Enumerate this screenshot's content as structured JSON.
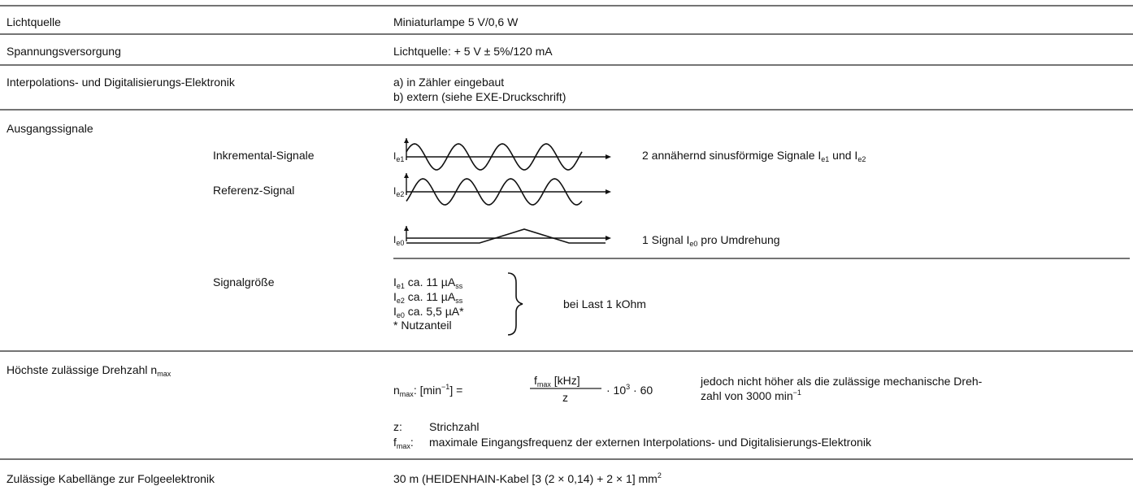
{
  "rows": [
    {
      "label": "Lichtquelle",
      "value": "Miniaturlampe 5 V/0,6 W"
    },
    {
      "label": "Spannungsversorgung",
      "value": "Lichtquelle: + 5 V ± 5%/120 mA"
    },
    {
      "label": "Interpolations- und Digitalisierungs-Elektronik",
      "lines": [
        "a)  in Zähler eingebaut",
        "b)  extern (siehe EXE-Druckschrift)"
      ]
    }
  ],
  "ausgang": {
    "label": "Ausgangssignale",
    "inkremental": "Inkremental-Signale",
    "referenz": "Referenz-Signal",
    "signals": [
      {
        "text": "I",
        "sub": "e1"
      },
      {
        "text": "I",
        "sub": "e2"
      },
      {
        "text": "I",
        "sub": "e0"
      }
    ],
    "desc1": [
      {
        "text": "2 annähernd sinusförmige Signale I",
        "sub": "e1"
      },
      {
        "text": " und I",
        "sub": "e2"
      }
    ],
    "desc0": [
      {
        "text": "1 Signal I",
        "sub": "e0"
      },
      {
        "text": " pro Umdrehung"
      }
    ]
  },
  "signalgroesse": {
    "label": "Signalgröße",
    "lines": [
      [
        {
          "text": "I",
          "sub": "e1"
        },
        {
          "text": " ca. 11 µA",
          "sub": "ss"
        }
      ],
      [
        {
          "text": "I",
          "sub": "e2"
        },
        {
          "text": " ca. 11 µA",
          "sub": "ss"
        }
      ],
      [
        {
          "text": "I",
          "sub": "e0"
        },
        {
          "text": " ca. 5,5 µA*"
        }
      ],
      [
        {
          "text": "* Nutzanteil"
        }
      ]
    ],
    "note": "bei Last 1 kOhm"
  },
  "drehzahl": {
    "label": [
      {
        "text": "Höchste zulässige Drehzahl n",
        "sub": "max"
      }
    ],
    "lhs": [
      {
        "text": "n",
        "sub": "max"
      },
      {
        "text": ":  [min",
        "sup": "−1"
      },
      {
        "text": "] ="
      }
    ],
    "numerator": [
      {
        "text": "f",
        "sub": "max"
      },
      {
        "text": " [kHz]"
      }
    ],
    "denominator": "z",
    "factor": [
      {
        "text": "· 10",
        "sup": "3"
      },
      {
        "text": " · 60"
      }
    ],
    "note": [
      {
        "text": "jedoch nicht höher als die zulässige mechanische Dreh-"
      },
      {
        "text": "zahl von 3000 min",
        "sup": "−1"
      }
    ],
    "z_key": "z:",
    "z_text": "Strichzahl",
    "f_key": [
      {
        "text": "f",
        "sub": "max"
      },
      {
        "text": ":"
      }
    ],
    "f_text": "maximale Eingangsfrequenz der externen Interpolations- und Digitalisierungs-Elektronik"
  },
  "kabel": {
    "label": "Zulässige Kabellänge zur Folgeelektronik",
    "value": [
      {
        "text": "30 m (HEIDENHAIN-Kabel [3 (2 × 0,14) + 2 × 1] mm",
        "sup": "2"
      }
    ]
  }
}
